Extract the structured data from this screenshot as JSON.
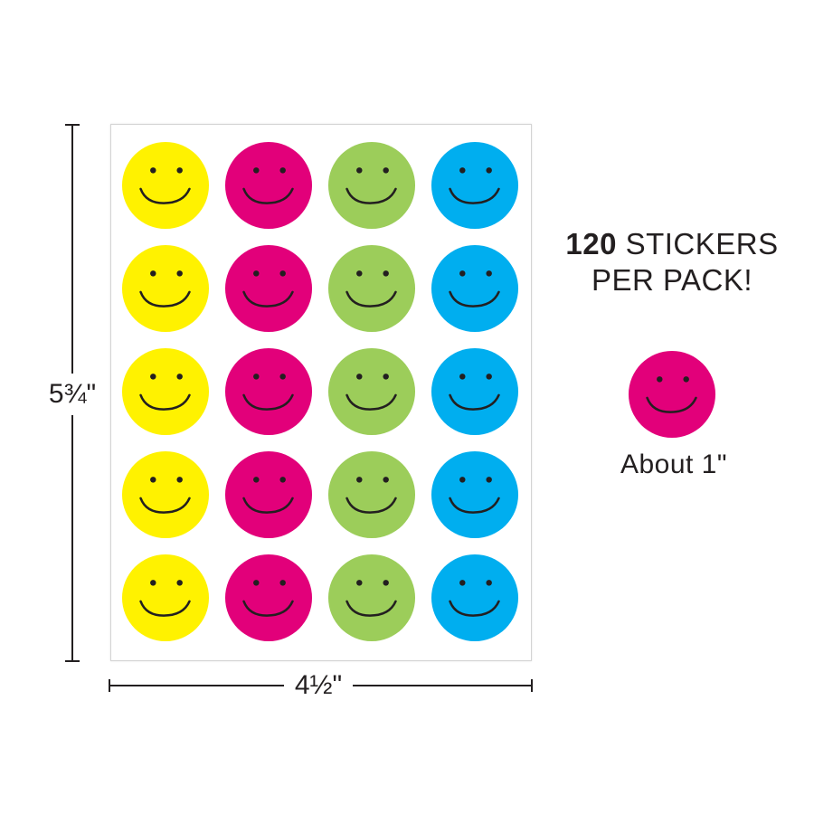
{
  "dimensions": {
    "height_label": "5¾\"",
    "width_label": "4½\""
  },
  "callout": {
    "count": "120",
    "count_suffix": " STICKERS",
    "line2": "PER PACK!",
    "size_label": "About 1\""
  },
  "sheet": {
    "rows": 5,
    "columns": 4,
    "column_colors": [
      "#fff200",
      "#e2007a",
      "#9ccd5a",
      "#00aeef"
    ],
    "column_names": [
      "yellow",
      "magenta",
      "green",
      "blue"
    ],
    "face_color": "#231f20"
  },
  "sample_sticker": {
    "color": "#e2007a",
    "name": "magenta"
  }
}
